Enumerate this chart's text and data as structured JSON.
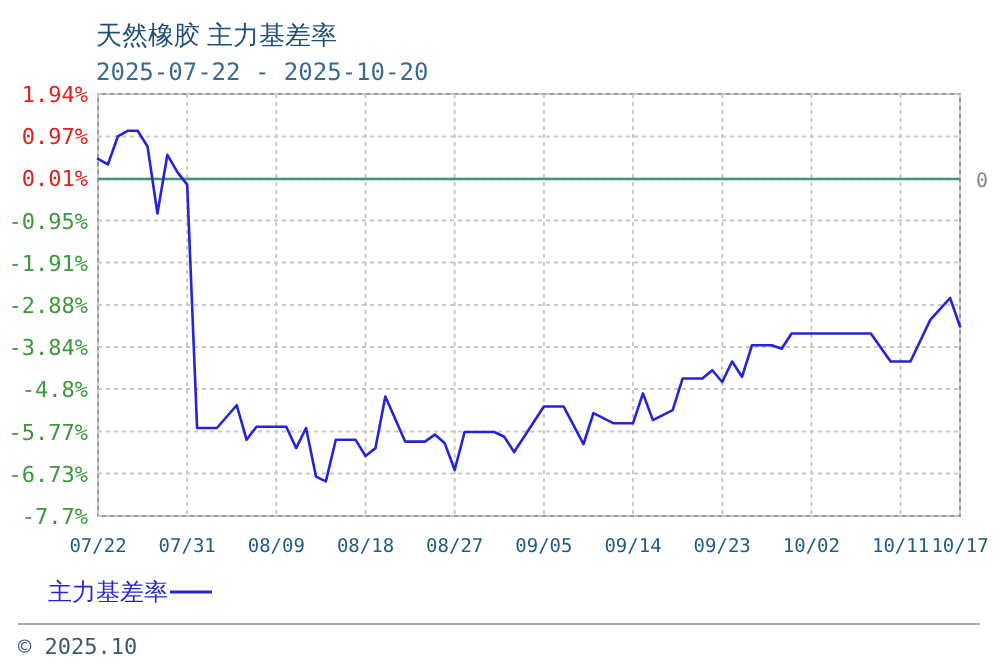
{
  "chart_data": {
    "type": "line",
    "title": "天然橡胶  主力基差率",
    "subtitle": "2025-07-22 - 2025-10-20",
    "x": [
      "2025-07-22",
      "2025-07-23",
      "2025-07-24",
      "2025-07-25",
      "2025-07-26",
      "2025-07-27",
      "2025-07-28",
      "2025-07-29",
      "2025-07-30",
      "2025-07-31",
      "2025-08-01",
      "2025-08-03",
      "2025-08-05",
      "2025-08-06",
      "2025-08-07",
      "2025-08-10",
      "2025-08-11",
      "2025-08-12",
      "2025-08-13",
      "2025-08-14",
      "2025-08-15",
      "2025-08-17",
      "2025-08-18",
      "2025-08-19",
      "2025-08-20",
      "2025-08-22",
      "2025-08-24",
      "2025-08-25",
      "2025-08-26",
      "2025-08-27",
      "2025-08-28",
      "2025-08-31",
      "2025-09-01",
      "2025-09-02",
      "2025-09-05",
      "2025-09-07",
      "2025-09-09",
      "2025-09-10",
      "2025-09-12",
      "2025-09-14",
      "2025-09-15",
      "2025-09-16",
      "2025-09-18",
      "2025-09-19",
      "2025-09-21",
      "2025-09-22",
      "2025-09-23",
      "2025-09-24",
      "2025-09-25",
      "2025-09-26",
      "2025-09-28",
      "2025-09-29",
      "2025-09-30",
      "2025-10-08",
      "2025-10-10",
      "2025-10-12",
      "2025-10-14",
      "2025-10-16",
      "2025-10-17"
    ],
    "series": [
      {
        "name": "主力基差率",
        "color": "#2424d8",
        "values": [
          0.46,
          0.33,
          0.97,
          1.1,
          1.1,
          0.74,
          -0.79,
          0.55,
          0.16,
          -0.13,
          -5.69,
          -5.69,
          -5.17,
          -5.96,
          -5.66,
          -5.66,
          -6.15,
          -5.69,
          -6.8,
          -6.91,
          -5.96,
          -5.96,
          -6.33,
          -6.15,
          -4.97,
          -6.0,
          -6.0,
          -5.84,
          -6.04,
          -6.65,
          -5.78,
          -5.78,
          -5.89,
          -6.24,
          -5.2,
          -5.2,
          -6.06,
          -5.35,
          -5.58,
          -5.58,
          -4.9,
          -5.51,
          -5.28,
          -4.56,
          -4.56,
          -4.37,
          -4.64,
          -4.17,
          -4.52,
          -3.8,
          -3.8,
          -3.88,
          -3.53,
          -3.53,
          -4.17,
          -4.17,
          -3.22,
          -2.72,
          -3.37
        ]
      }
    ],
    "xlim": [
      "2025-07-22",
      "2025-10-17"
    ],
    "xticks": [
      {
        "value": "2025-07-22",
        "label": "07/22"
      },
      {
        "value": "2025-07-31",
        "label": "07/31"
      },
      {
        "value": "2025-08-09",
        "label": "08/09"
      },
      {
        "value": "2025-08-18",
        "label": "08/18"
      },
      {
        "value": "2025-08-27",
        "label": "08/27"
      },
      {
        "value": "2025-09-05",
        "label": "09/05"
      },
      {
        "value": "2025-09-14",
        "label": "09/14"
      },
      {
        "value": "2025-09-23",
        "label": "09/23"
      },
      {
        "value": "2025-10-02",
        "label": "10/02"
      },
      {
        "value": "2025-10-11",
        "label": "10/11"
      },
      {
        "value": "2025-10-17",
        "label": "10/17"
      }
    ],
    "ylim": [
      -7.7,
      1.94
    ],
    "yticks": [
      {
        "value": 1.94,
        "label": "1.94%"
      },
      {
        "value": 0.97,
        "label": "0.97%"
      },
      {
        "value": 0.01,
        "label": "0.01%"
      },
      {
        "value": -0.95,
        "label": "-0.95%"
      },
      {
        "value": -1.91,
        "label": "-1.91%"
      },
      {
        "value": -2.88,
        "label": "-2.88%"
      },
      {
        "value": -3.84,
        "label": "-3.84%"
      },
      {
        "value": -4.8,
        "label": "-4.8%"
      },
      {
        "value": -5.77,
        "label": "-5.77%"
      },
      {
        "value": -6.73,
        "label": "-6.73%"
      },
      {
        "value": -7.7,
        "label": "-7.7%"
      }
    ],
    "ref_lines": [
      {
        "axis": "y",
        "value": 0,
        "label": "0",
        "color": "#3c9a6e"
      }
    ],
    "grid": true,
    "legend": "bottom left",
    "marker": "none",
    "line_style": "solid",
    "annotations": [
      "© 2025.10"
    ]
  }
}
